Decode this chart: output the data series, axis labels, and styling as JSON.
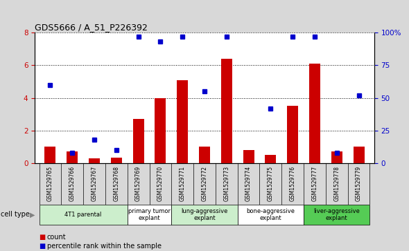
{
  "title": "GDS5666 / A_51_P226392",
  "samples": [
    "GSM1529765",
    "GSM1529766",
    "GSM1529767",
    "GSM1529768",
    "GSM1529769",
    "GSM1529770",
    "GSM1529771",
    "GSM1529772",
    "GSM1529773",
    "GSM1529774",
    "GSM1529775",
    "GSM1529776",
    "GSM1529777",
    "GSM1529778",
    "GSM1529779"
  ],
  "counts": [
    1.0,
    0.7,
    0.3,
    0.35,
    2.7,
    4.0,
    5.1,
    1.0,
    6.4,
    0.8,
    0.5,
    3.5,
    6.1,
    0.7,
    1.0
  ],
  "percentiles": [
    60,
    8,
    18,
    10,
    97,
    93,
    97,
    55,
    97,
    null,
    42,
    97,
    97,
    8,
    52
  ],
  "ylim_left": [
    0,
    8
  ],
  "ylim_right": [
    0,
    100
  ],
  "yticks_left": [
    0,
    2,
    4,
    6,
    8
  ],
  "yticks_right": [
    0,
    25,
    50,
    75,
    100
  ],
  "ytick_labels_right": [
    "0",
    "25",
    "50",
    "75",
    "100%"
  ],
  "bar_color": "#cc0000",
  "dot_color": "#0000cc",
  "cell_types": [
    {
      "label": "4T1 parental",
      "start": 0,
      "end": 3,
      "color": "#cceecc"
    },
    {
      "label": "primary tumor\nexplant",
      "start": 4,
      "end": 5,
      "color": "#ffffff"
    },
    {
      "label": "lung-aggressive\nexplant",
      "start": 6,
      "end": 8,
      "color": "#cceecc"
    },
    {
      "label": "bone-aggressive\nexplant",
      "start": 9,
      "end": 11,
      "color": "#ffffff"
    },
    {
      "label": "liver-aggressive\nexplant",
      "start": 12,
      "end": 14,
      "color": "#55cc55"
    }
  ],
  "cell_type_label": "cell type",
  "legend_count_label": "count",
  "legend_pct_label": "percentile rank within the sample",
  "bar_width": 0.5,
  "bg_color": "#d8d8d8",
  "plot_bg": "#ffffff",
  "xticklabel_bg": "#c8c8c8",
  "left_tick_color": "#cc0000",
  "right_tick_color": "#0000cc"
}
